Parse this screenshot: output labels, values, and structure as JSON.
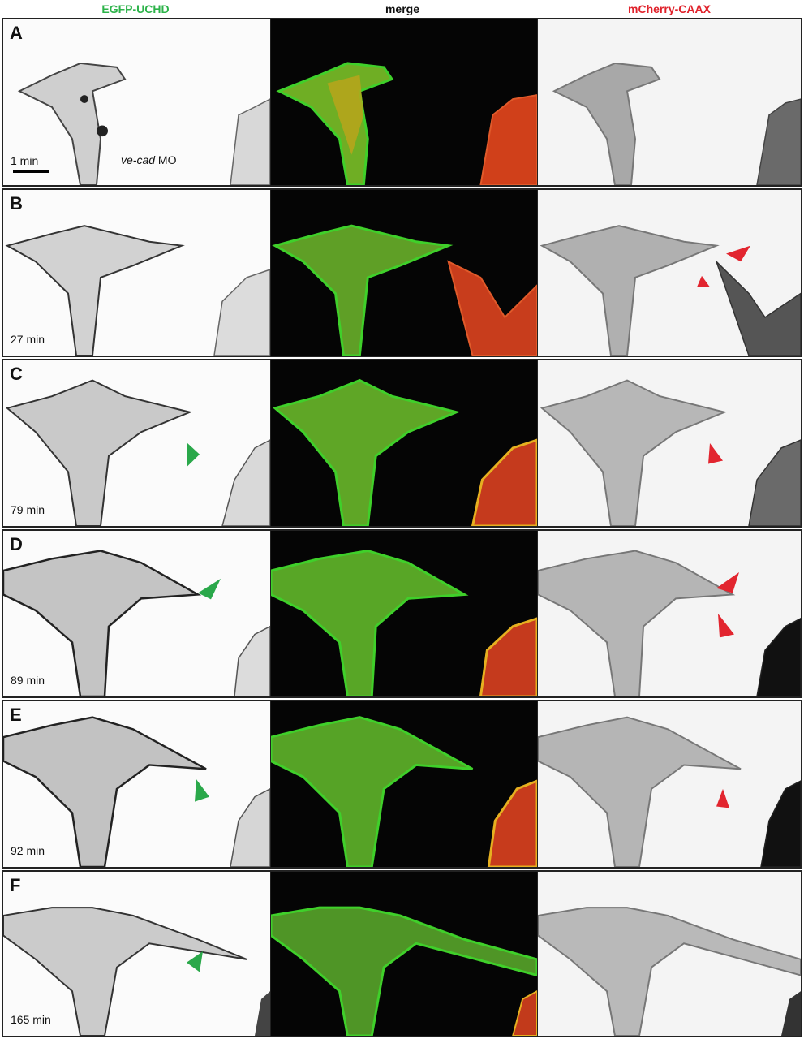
{
  "headers": {
    "left": "EGFP-UCHD",
    "middle": "merge",
    "right": "mCherry-CAAX"
  },
  "colors": {
    "green": "#2db34a",
    "red": "#e0222b",
    "arrow_green": "#2aa84a",
    "arrow_red": "#e2252f"
  },
  "scale_label": "1 min",
  "morpholino": {
    "gene": "ve-cad",
    "suffix": "MO"
  },
  "panels": [
    {
      "letter": "A",
      "time": ""
    },
    {
      "letter": "B",
      "time": "27 min"
    },
    {
      "letter": "C",
      "time": "79 min"
    },
    {
      "letter": "D",
      "time": "89 min"
    },
    {
      "letter": "E",
      "time": "92 min"
    },
    {
      "letter": "F",
      "time": "165 min"
    }
  ]
}
